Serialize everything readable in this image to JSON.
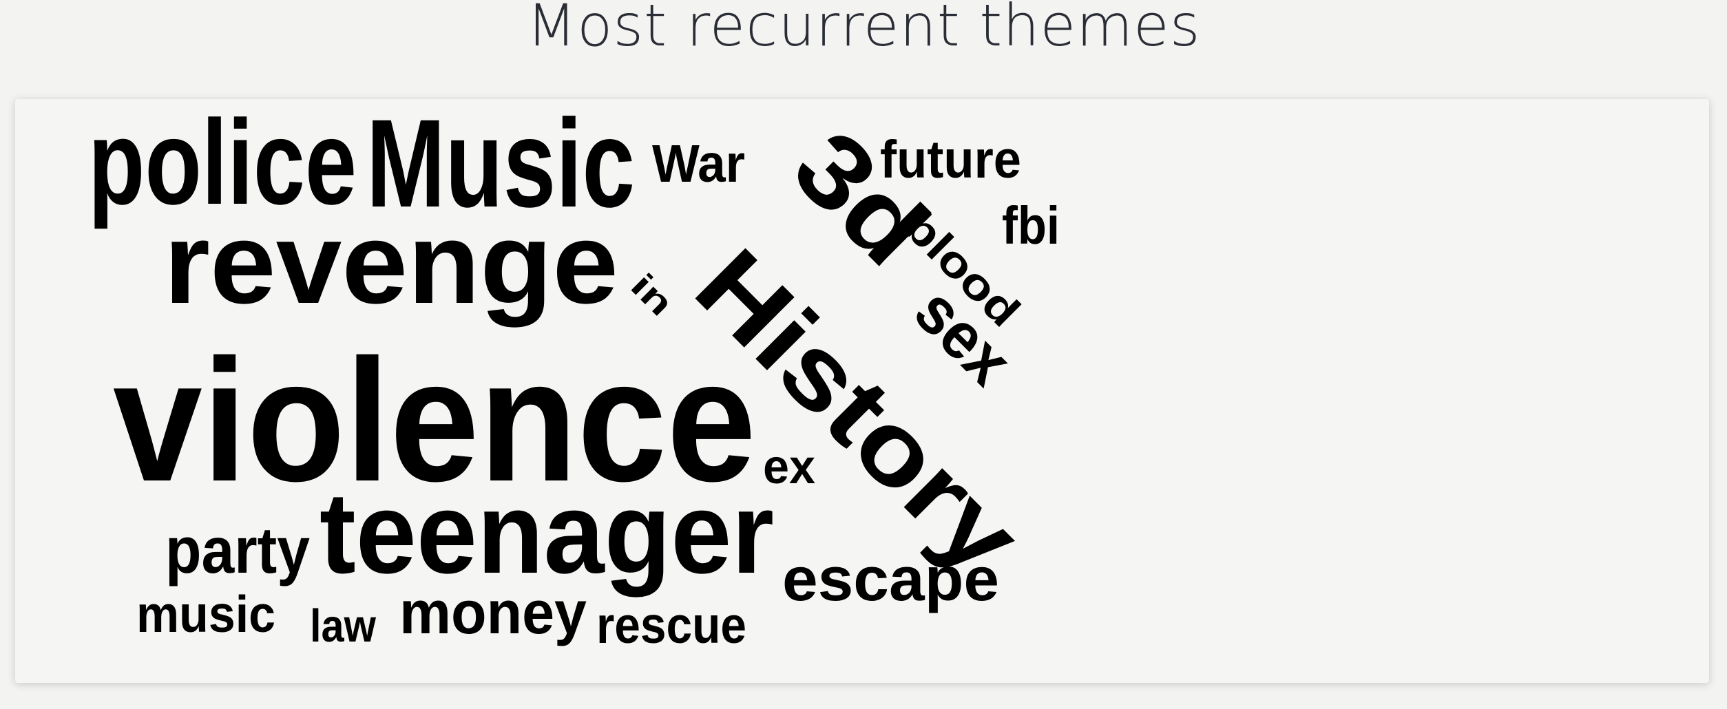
{
  "title": "Most recurrent themes",
  "colors": {
    "background": "#f3f3f1",
    "card": "#f5f5f3",
    "title": "#2a2d35",
    "words": "#000000"
  },
  "words": {
    "police": "police",
    "music_cap": "Music",
    "war": "War",
    "future": "future",
    "fbi": "fbi",
    "revenge": "revenge",
    "3d": "3d",
    "history": "History",
    "blood": "blood",
    "sex": "sex",
    "in": "in",
    "violence": "violence",
    "ex": "ex",
    "party": "party",
    "teenager": "teenager",
    "escape": "escape",
    "music": "music",
    "law": "law",
    "money": "money",
    "rescue": "rescue"
  }
}
